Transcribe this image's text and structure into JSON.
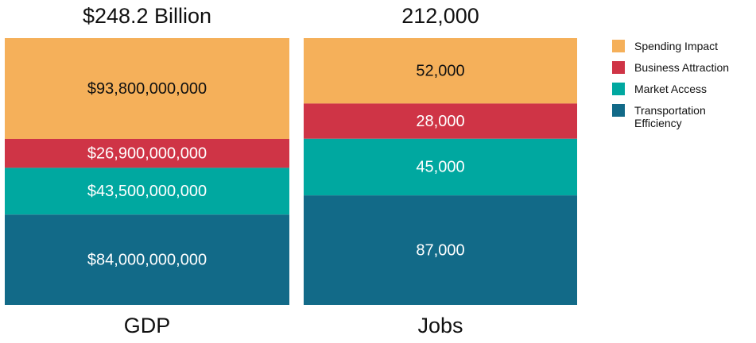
{
  "chart_data": {
    "type": "bar",
    "stacked": true,
    "normalized": true,
    "categories": [
      "GDP",
      "Jobs"
    ],
    "totals": [
      248200000000,
      212000
    ],
    "total_labels": [
      "$248.2 Billion",
      "212,000"
    ],
    "series": [
      {
        "name": "Spending Impact",
        "color": "#f5b05a",
        "label_color": "#111111",
        "values": [
          93800000000,
          52000
        ],
        "value_labels": [
          "$93,800,000,000",
          "52,000"
        ]
      },
      {
        "name": "Business Attraction",
        "color": "#cf3446",
        "label_color": "#ffffff",
        "values": [
          26900000000,
          28000
        ],
        "value_labels": [
          "$26,900,000,000",
          "28,000"
        ]
      },
      {
        "name": "Market Access",
        "color": "#00a8a0",
        "label_color": "#ffffff",
        "values": [
          43500000000,
          45000
        ],
        "value_labels": [
          "$43,500,000,000",
          "45,000"
        ]
      },
      {
        "name": "Transportation Efficiency",
        "color": "#126a88",
        "label_color": "#ffffff",
        "values": [
          84000000000,
          87000
        ],
        "value_labels": [
          "$84,000,000,000",
          "87,000"
        ]
      }
    ],
    "legend": "right"
  }
}
